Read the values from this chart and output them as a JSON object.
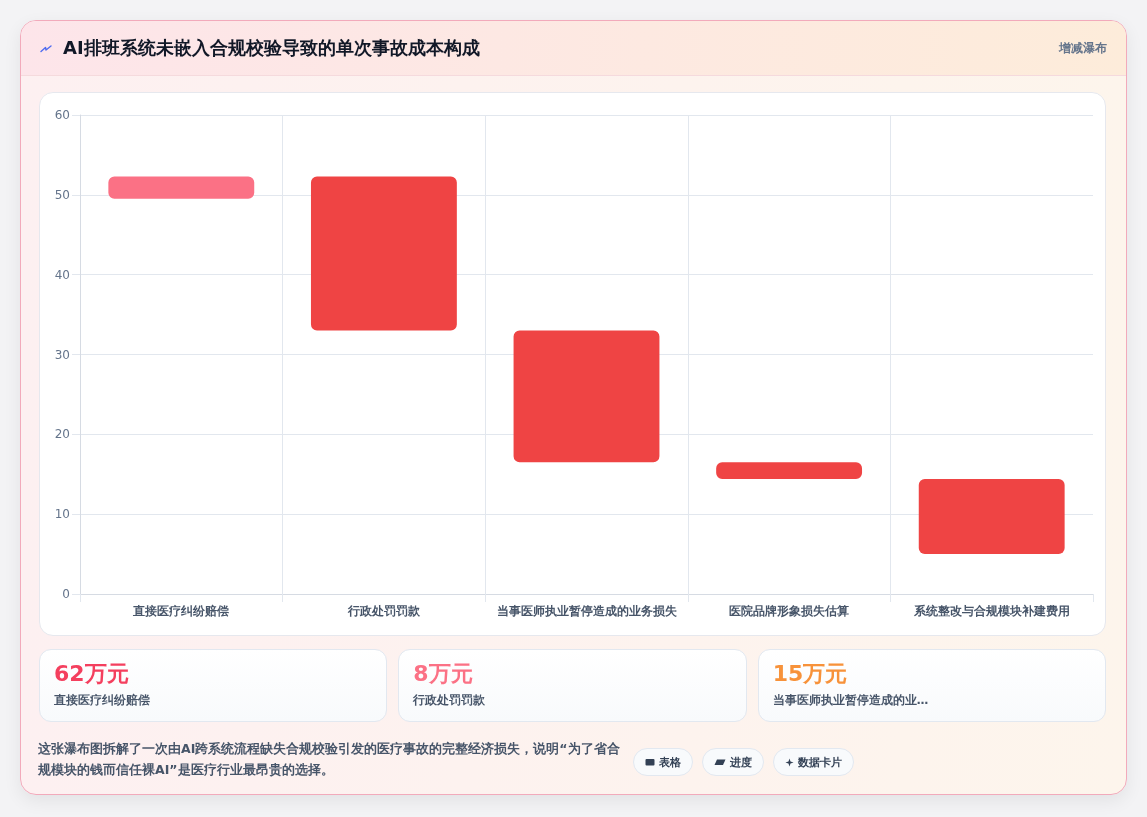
{
  "chart_data": [
    {
      "type": "bar",
      "title": "AI排班系统未嵌入合规校验导致的单次事故成本构成",
      "subtitle": "增减瀑布",
      "categories": [
        "直接医疗纠纷赔偿",
        "行政处罚罚款",
        "当事医师执业暂停造成的业务损失",
        "医院品牌形象损失估算",
        "系统整改与合规模块补建费用"
      ],
      "values": [
        2.8,
        19.3,
        16.5,
        2.1,
        9.4
      ],
      "base": [
        49.5,
        33.0,
        16.5,
        14.4,
        5.0
      ],
      "colors": [
        "#fb7185",
        "#ef4444",
        "#ef4444",
        "#ef4444",
        "#ef4444"
      ],
      "ylim": [
        0,
        60
      ],
      "yticks": [
        0,
        10,
        20,
        30,
        40,
        50,
        60
      ],
      "grid": true,
      "annotations": [
        "这张瀑布图拆解了一次由AI跨系统流程缺失合规校验引发的医疗事故的完整经济损失，说明“为了省合规模块的钱而信任裸AI”是医疗行业最昂贵的选择。"
      ]
    },
    {
      "type": "other",
      "categories": [
        "直接医疗纠纷赔偿",
        "行政处罚罚款",
        "当事医师执业暂停造成的业…"
      ],
      "value_labels": [
        "62万元",
        "8万元",
        "15万元"
      ],
      "annotations": [
        "表格",
        "进度",
        "数据卡片"
      ]
    }
  ]
}
